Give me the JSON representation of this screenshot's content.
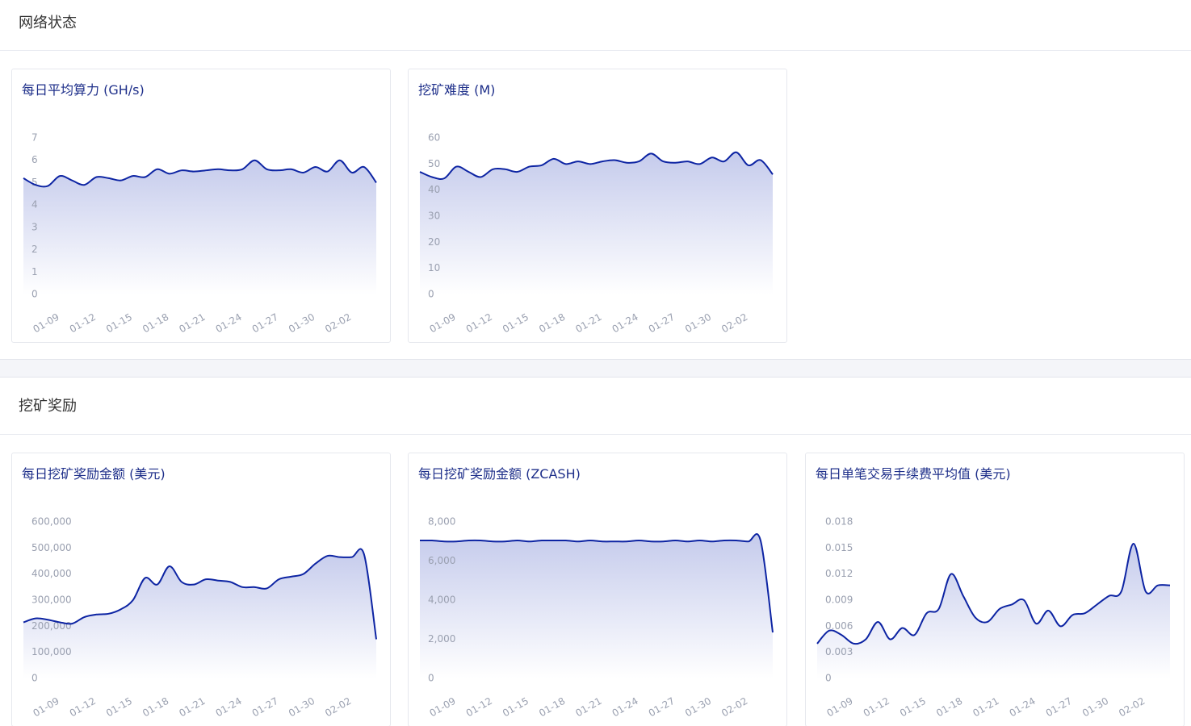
{
  "sections": [
    {
      "title": "网络状态"
    },
    {
      "title": "挖矿奖励"
    }
  ],
  "chart_data": [
    {
      "type": "area",
      "title": "每日平均算力 (GH/s)",
      "color": "#0d24a3",
      "categories": [
        null,
        null,
        "01-09",
        null,
        null,
        "01-12",
        null,
        null,
        "01-15",
        null,
        null,
        "01-18",
        null,
        null,
        "01-21",
        null,
        null,
        "01-24",
        null,
        null,
        "01-27",
        null,
        null,
        "01-30",
        null,
        null,
        "02-02",
        null,
        null,
        null
      ],
      "values": [
        5.2,
        4.9,
        4.85,
        5.3,
        5.1,
        4.9,
        5.25,
        5.2,
        5.1,
        5.3,
        5.25,
        5.6,
        5.4,
        5.55,
        5.5,
        5.55,
        5.6,
        5.55,
        5.6,
        6.0,
        5.6,
        5.55,
        5.6,
        5.45,
        5.7,
        5.5,
        6.0,
        5.45,
        5.7,
        5.0
      ],
      "ylim": [
        0,
        7
      ],
      "yticks": [
        0,
        1,
        2,
        3,
        4,
        5,
        6,
        7
      ]
    },
    {
      "type": "area",
      "title": "挖矿难度 (M)",
      "color": "#0d24a3",
      "categories": [
        null,
        null,
        "01-09",
        null,
        null,
        "01-12",
        null,
        null,
        "01-15",
        null,
        null,
        "01-18",
        null,
        null,
        "01-21",
        null,
        null,
        "01-24",
        null,
        null,
        "01-27",
        null,
        null,
        "01-30",
        null,
        null,
        "02-02",
        null,
        null,
        null
      ],
      "values": [
        47,
        45,
        44.5,
        49,
        47,
        45,
        48,
        48,
        47,
        49,
        49.5,
        52,
        50,
        51,
        50,
        51,
        51.5,
        50.5,
        51,
        54,
        51,
        50.5,
        51,
        50,
        52.5,
        51,
        54.5,
        49.5,
        51.5,
        46
      ],
      "ylim": [
        0,
        60
      ],
      "yticks": [
        0,
        10,
        20,
        30,
        40,
        50,
        60
      ]
    },
    {
      "type": "area",
      "title": "每日挖矿奖励金额 (美元)",
      "color": "#0d24a3",
      "categories": [
        null,
        null,
        "01-09",
        null,
        null,
        "01-12",
        null,
        null,
        "01-15",
        null,
        null,
        "01-18",
        null,
        null,
        "01-21",
        null,
        null,
        "01-24",
        null,
        null,
        "01-27",
        null,
        null,
        "01-30",
        null,
        null,
        "02-02",
        null,
        null,
        null
      ],
      "values": [
        215000,
        230000,
        225000,
        215000,
        210000,
        235000,
        245000,
        248000,
        265000,
        300000,
        385000,
        360000,
        430000,
        370000,
        360000,
        380000,
        375000,
        370000,
        350000,
        350000,
        345000,
        380000,
        390000,
        400000,
        440000,
        470000,
        465000,
        465000,
        475000,
        150000
      ],
      "ylim": [
        0,
        600000
      ],
      "yticks": [
        0,
        {
          "value": 100000,
          "label": "100,000"
        },
        {
          "value": 200000,
          "label": "200,000"
        },
        {
          "value": 300000,
          "label": "300,000"
        },
        {
          "value": 400000,
          "label": "400,000"
        },
        {
          "value": 500000,
          "label": "500,000"
        },
        {
          "value": 600000,
          "label": "600,000"
        }
      ]
    },
    {
      "type": "area",
      "title": "每日挖矿奖励金额 (ZCASH)",
      "color": "#0d24a3",
      "categories": [
        null,
        null,
        "01-09",
        null,
        null,
        "01-12",
        null,
        null,
        "01-15",
        null,
        null,
        "01-18",
        null,
        null,
        "01-21",
        null,
        null,
        "01-24",
        null,
        null,
        "01-27",
        null,
        null,
        "01-30",
        null,
        null,
        "02-02",
        null,
        null,
        null
      ],
      "values": [
        7050,
        7050,
        7000,
        7000,
        7050,
        7050,
        7000,
        7000,
        7050,
        7000,
        7050,
        7050,
        7050,
        7000,
        7050,
        7000,
        7000,
        7000,
        7050,
        7000,
        7000,
        7050,
        7000,
        7050,
        7000,
        7050,
        7050,
        7000,
        7050,
        2350
      ],
      "ylim": [
        0,
        8000
      ],
      "yticks": [
        0,
        {
          "value": 2000,
          "label": "2,000"
        },
        {
          "value": 4000,
          "label": "4,000"
        },
        {
          "value": 6000,
          "label": "6,000"
        },
        {
          "value": 8000,
          "label": "8,000"
        }
      ]
    },
    {
      "type": "area",
      "title": "每日单笔交易手续费平均值 (美元)",
      "color": "#0d24a3",
      "categories": [
        null,
        null,
        "01-09",
        null,
        null,
        "01-12",
        null,
        null,
        "01-15",
        null,
        null,
        "01-18",
        null,
        null,
        "01-21",
        null,
        null,
        "01-24",
        null,
        null,
        "01-27",
        null,
        null,
        "01-30",
        null,
        null,
        "02-02",
        null,
        null,
        null
      ],
      "values": [
        0.004,
        0.0055,
        0.005,
        0.004,
        0.0045,
        0.0065,
        0.0045,
        0.0058,
        0.005,
        0.0075,
        0.008,
        0.012,
        0.0095,
        0.007,
        0.0065,
        0.008,
        0.0085,
        0.009,
        0.0063,
        0.0078,
        0.006,
        0.0073,
        0.0075,
        0.0085,
        0.0095,
        0.01,
        0.0155,
        0.01,
        0.0107,
        0.0107
      ],
      "ylim": [
        0,
        0.018
      ],
      "yticks": [
        0,
        0.003,
        0.006,
        0.009,
        0.012,
        0.015,
        0.018
      ]
    }
  ]
}
